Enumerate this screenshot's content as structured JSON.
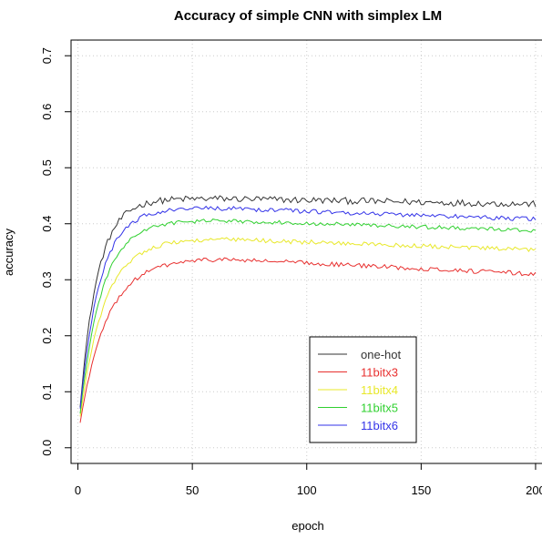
{
  "chart_data": {
    "type": "line",
    "title": "Accuracy of simple CNN with simplex LM",
    "xlabel": "epoch",
    "ylabel": "accuracy",
    "xlim": [
      -3,
      204
    ],
    "ylim": [
      -0.028,
      0.728
    ],
    "x_ticks": [
      0,
      50,
      100,
      150,
      200
    ],
    "y_ticks": [
      0.0,
      0.1,
      0.2,
      0.3,
      0.4,
      0.5,
      0.6,
      0.7
    ],
    "grid": true,
    "legend_position": "bottom-right",
    "epochs": [
      1,
      200
    ],
    "series": [
      {
        "name": "one-hot",
        "color": "#333333",
        "start": 0.075,
        "plateau": 0.445,
        "end": 0.435,
        "rate": 0.13,
        "noise": 0.006
      },
      {
        "name": "11bitx3",
        "color": "#e8302f",
        "start": 0.045,
        "plateau": 0.338,
        "end": 0.31,
        "rate": 0.085,
        "noise": 0.004
      },
      {
        "name": "11bitx4",
        "color": "#e8e82a",
        "start": 0.055,
        "plateau": 0.373,
        "end": 0.353,
        "rate": 0.095,
        "noise": 0.004
      },
      {
        "name": "11bitx5",
        "color": "#2fd02f",
        "start": 0.062,
        "plateau": 0.406,
        "end": 0.388,
        "rate": 0.105,
        "noise": 0.0035
      },
      {
        "name": "11bitx6",
        "color": "#3333e8",
        "start": 0.07,
        "plateau": 0.428,
        "end": 0.408,
        "rate": 0.115,
        "noise": 0.004
      }
    ]
  }
}
